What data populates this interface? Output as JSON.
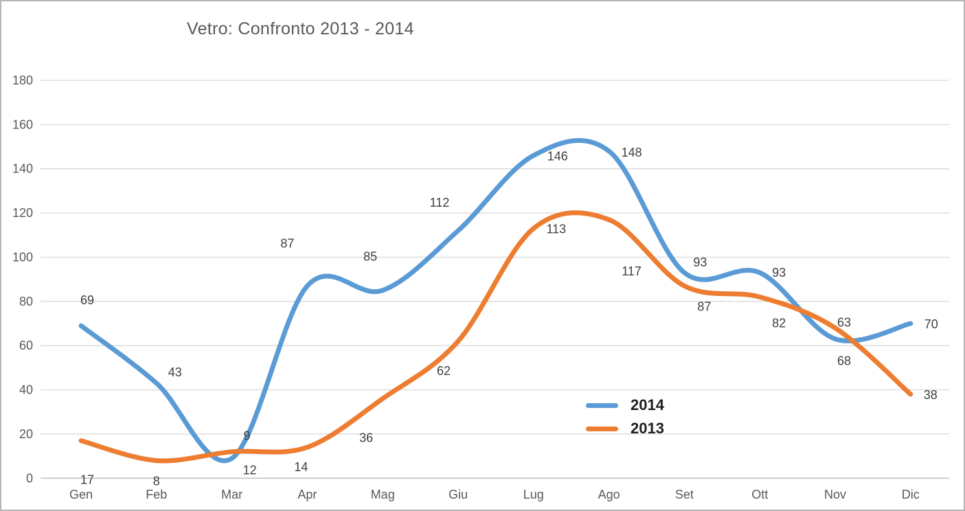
{
  "chart_data": {
    "type": "line",
    "title": "Vetro: Confronto 2013 - 2014",
    "categories": [
      "Gen",
      "Feb",
      "Mar",
      "Apr",
      "Mag",
      "Giu",
      "Lug",
      "Ago",
      "Set",
      "Ott",
      "Nov",
      "Dic"
    ],
    "series": [
      {
        "name": "2014",
        "color": "#5B9BD5",
        "values": [
          69,
          43,
          9,
          87,
          85,
          112,
          146,
          148,
          93,
          93,
          63,
          70
        ],
        "label_offsets": [
          [
            9,
            -37
          ],
          [
            27,
            -16
          ],
          [
            22,
            -33
          ],
          [
            -29,
            -62
          ],
          [
            -18,
            -49
          ],
          [
            -27,
            -41
          ],
          [
            35,
            1
          ],
          [
            33,
            2
          ],
          [
            23,
            -15
          ],
          [
            28,
            0
          ],
          [
            13,
            -24
          ],
          [
            30,
            1
          ]
        ]
      },
      {
        "name": "2013",
        "color": "#ED7D31",
        "values": [
          17,
          8,
          12,
          14,
          36,
          62,
          113,
          117,
          87,
          82,
          68,
          38
        ],
        "label_offsets": [
          [
            9,
            57
          ],
          [
            0,
            30
          ],
          [
            26,
            27
          ],
          [
            -9,
            29
          ],
          [
            -24,
            57
          ],
          [
            -21,
            43
          ],
          [
            33,
            1
          ],
          [
            33,
            75
          ],
          [
            29,
            30
          ],
          [
            28,
            38
          ],
          [
            13,
            48
          ],
          [
            29,
            1
          ]
        ]
      }
    ],
    "ylim": [
      0,
      180
    ],
    "ytick_step": 20,
    "yticks": [
      0,
      20,
      40,
      60,
      80,
      100,
      120,
      140,
      160,
      180
    ],
    "grid": true,
    "smooth_lines": true,
    "data_labels_shown": true,
    "legend_position": "inside-right",
    "legend_entries": [
      "2014",
      "2013"
    ]
  },
  "colors": {
    "series_2014": "#5B9BD5",
    "series_2013": "#ED7D31",
    "gridline": "#D9D9D9",
    "axis_line": "#C3C3C3",
    "axis_text": "#595959",
    "title_text": "#595959",
    "data_label_text": "#3f3f3f",
    "legend_text": "#1f1f1f",
    "frame_border": "#b5b5b5",
    "background": "#ffffff"
  }
}
